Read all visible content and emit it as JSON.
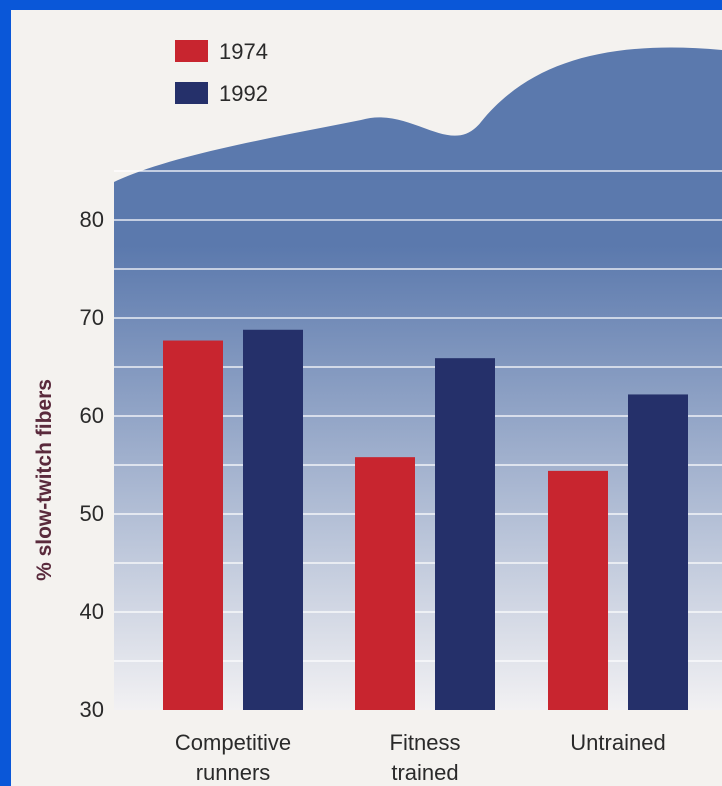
{
  "chart_data": {
    "type": "bar",
    "categories": [
      "Competitive runners",
      "Fitness trained",
      "Untrained"
    ],
    "category_lines": [
      [
        "Competitive",
        "runners"
      ],
      [
        "Fitness",
        "trained"
      ],
      [
        "Untrained"
      ]
    ],
    "series": [
      {
        "name": "1974",
        "values": [
          67.7,
          55.8,
          54.4
        ]
      },
      {
        "name": "1992",
        "values": [
          68.8,
          65.9,
          62.2
        ]
      }
    ],
    "ylabel": "% slow-twitch fibers",
    "ylim": [
      30,
      80
    ],
    "yticks": [
      30,
      40,
      50,
      60,
      70,
      80
    ],
    "legend_position": "top-left",
    "colors": {
      "series": [
        "#c8252f",
        "#25306a"
      ],
      "panel_top": "#5b79ad",
      "panel_bottom": "#f2f1f3",
      "ylabel": "#5a2a3c",
      "text": "#2a2a2a",
      "background": "#0a57d8",
      "page": "#f4f2ef"
    }
  }
}
